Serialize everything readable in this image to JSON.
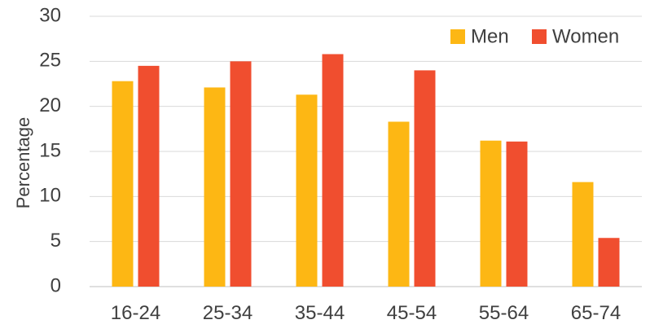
{
  "chart_data": {
    "type": "bar",
    "title": "",
    "xlabel": "",
    "ylabel": "Percentage",
    "categories": [
      "16-24",
      "25-34",
      "35-44",
      "45-54",
      "55-64",
      "65-74"
    ],
    "series": [
      {
        "name": "Men",
        "color": "#FDB714",
        "values": [
          22.8,
          22.1,
          21.3,
          18.3,
          16.2,
          11.6
        ]
      },
      {
        "name": "Women",
        "color": "#F04E2F",
        "values": [
          24.5,
          25.0,
          25.8,
          24.0,
          16.1,
          5.4
        ]
      }
    ],
    "ylim": [
      0,
      30
    ],
    "yticks": [
      "0",
      "5",
      "10",
      "15",
      "20",
      "25",
      "30"
    ],
    "grid": true,
    "legend_position": "top-right"
  }
}
